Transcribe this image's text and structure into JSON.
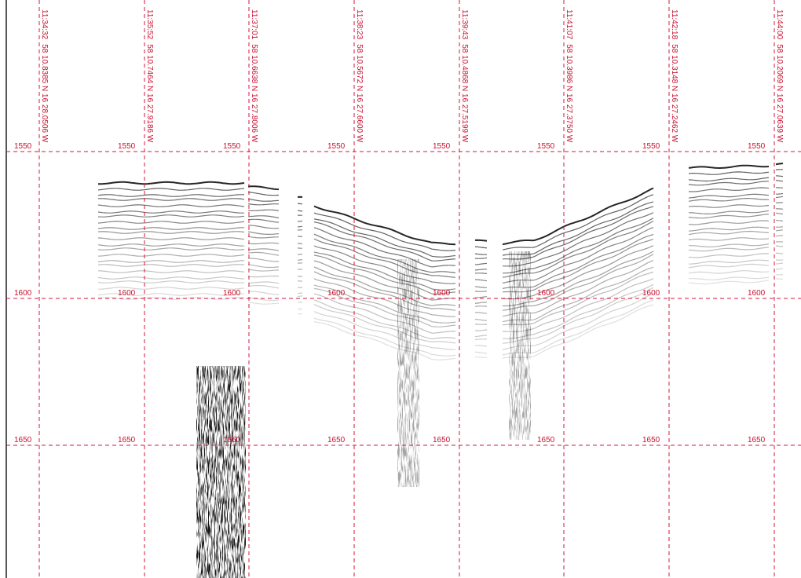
{
  "markers": [
    {
      "time": "11:34:32",
      "position": "58 10.8385 N 16 28.0506 W"
    },
    {
      "time": "11:35:52",
      "position": "58 10.7464 N 16 27.9186 W"
    },
    {
      "time": "11:37:01",
      "position": "58 10.6638 N 16 27.8006 W"
    },
    {
      "time": "11:38:23",
      "position": "58 10.5672 N 16 27.6600 W"
    },
    {
      "time": "11:39:43",
      "position": "58 10.4868 N 16 27.5199 W"
    },
    {
      "time": "11:41:07",
      "position": "58 10.3986 N 16 27.3750 W"
    },
    {
      "time": "11:42:18",
      "position": "58 10.3148 N 16 27.2462 W"
    },
    {
      "time": "11:44:00",
      "position": "58 10.2069 N 16 27.0639 W"
    }
  ],
  "depths": [
    1550,
    1600,
    1650
  ]
}
